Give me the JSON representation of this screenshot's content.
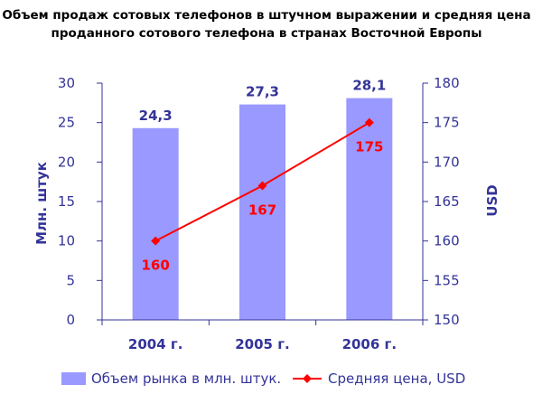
{
  "colors": {
    "bar": "#9999ff",
    "line": "#ff0000",
    "axis": "#333399",
    "title": "#000000"
  },
  "chart_data": {
    "type": "bar",
    "title_line1": "Объем продаж сотовых телефонов в штучном выражении и средняя цена",
    "title_line2": "проданного сотового телефона в странах Восточной Европы",
    "categories": [
      "2004 г.",
      "2005 г.",
      "2006 г."
    ],
    "y_left": {
      "label": "Млн. штук",
      "range": [
        0,
        30
      ],
      "ticks": [
        "0",
        "5",
        "10",
        "15",
        "20",
        "25",
        "30"
      ]
    },
    "y_right": {
      "label": "USD",
      "range": [
        150,
        180
      ],
      "ticks": [
        "150",
        "155",
        "160",
        "165",
        "170",
        "175",
        "180"
      ]
    },
    "series": [
      {
        "name": "Объем рынка в млн. штук.",
        "type": "bar",
        "axis": "left",
        "values": [
          24.3,
          27.3,
          28.1
        ],
        "labels": [
          "24,3",
          "27,3",
          "28,1"
        ]
      },
      {
        "name": "Средняя цена, USD",
        "type": "line",
        "axis": "right",
        "values": [
          160,
          167,
          175
        ],
        "labels": [
          "160",
          "167",
          "175"
        ]
      }
    ],
    "grid": false,
    "legend_position": "bottom"
  }
}
